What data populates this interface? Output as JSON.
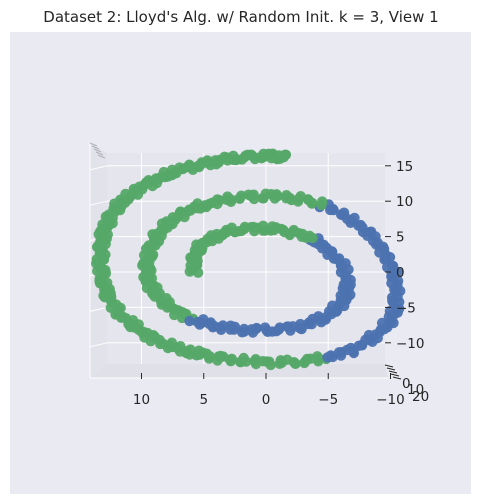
{
  "chart_data": {
    "type": "scatter",
    "projection": "3d",
    "title": "Dataset 2: Lloyd's Alg. w/ Random Init. k = 3, View 1",
    "xlabel": "",
    "ylabel": "",
    "zlabel": "",
    "x_axis": {
      "ticks": [
        10,
        5,
        0,
        -5,
        -10
      ],
      "tick_labels": [
        "10",
        "5",
        "0",
        "−5",
        "−10"
      ],
      "range": [
        14,
        -10
      ],
      "orientation": "reversed"
    },
    "z_axis": {
      "ticks": [
        15,
        10,
        5,
        0,
        -5,
        -10
      ],
      "tick_labels": [
        "15",
        "10",
        "5",
        "0",
        "−5",
        "−10"
      ],
      "range": [
        -13,
        17
      ]
    },
    "depth_axis": {
      "tick_labels": [
        "0",
        "10",
        "20"
      ]
    },
    "grid": true,
    "legend": "none",
    "colors": {
      "cluster_green": "#55a868",
      "cluster_blue": "#4c72b0",
      "panel": "#eaeaf2",
      "pane": "#e5e5ed",
      "grid": "#ffffff"
    },
    "curve": {
      "description": "spiral point cloud, points listed as (x, z) in data units",
      "points": [
        [
          -1.6,
          16.2
        ],
        [
          -0.4,
          16.4
        ],
        [
          1.4,
          16.3
        ],
        [
          3.2,
          15.9
        ],
        [
          5.0,
          15.3
        ],
        [
          6.8,
          14.5
        ],
        [
          8.4,
          13.4
        ],
        [
          10.0,
          12.0
        ],
        [
          11.4,
          10.2
        ],
        [
          12.4,
          8.2
        ],
        [
          13.0,
          6.0
        ],
        [
          13.2,
          3.8
        ],
        [
          13.3,
          1.2
        ],
        [
          13.1,
          -1.4
        ],
        [
          12.6,
          -3.8
        ],
        [
          11.6,
          -6.2
        ],
        [
          10.2,
          -8.2
        ],
        [
          8.6,
          -9.8
        ],
        [
          6.8,
          -11.0
        ],
        [
          4.8,
          -11.8
        ],
        [
          2.6,
          -12.4
        ],
        [
          0.0,
          -12.8
        ],
        [
          -2.6,
          -12.7
        ],
        [
          -5.0,
          -12.1
        ],
        [
          -7.2,
          -10.8
        ],
        [
          -9.0,
          -8.8
        ],
        [
          -10.2,
          -6.4
        ],
        [
          -10.5,
          -3.6
        ],
        [
          -10.3,
          -0.6
        ],
        [
          -9.6,
          2.6
        ],
        [
          -8.3,
          5.4
        ],
        [
          -6.6,
          7.8
        ],
        [
          -4.4,
          9.6
        ],
        [
          -2.2,
          10.5
        ],
        [
          0.2,
          10.8
        ],
        [
          2.6,
          10.4
        ],
        [
          4.8,
          9.6
        ],
        [
          6.6,
          8.4
        ],
        [
          7.8,
          7.0
        ],
        [
          8.8,
          5.0
        ],
        [
          9.4,
          2.8
        ],
        [
          9.6,
          0.6
        ],
        [
          9.4,
          -1.6
        ],
        [
          8.6,
          -3.6
        ],
        [
          7.4,
          -5.4
        ],
        [
          5.8,
          -6.8
        ],
        [
          3.8,
          -7.8
        ],
        [
          1.6,
          -8.2
        ],
        [
          -0.8,
          -8.2
        ],
        [
          -3.0,
          -7.6
        ],
        [
          -5.0,
          -6.2
        ],
        [
          -6.2,
          -4.2
        ],
        [
          -6.6,
          -1.8
        ],
        [
          -6.2,
          0.8
        ],
        [
          -5.0,
          3.2
        ],
        [
          -3.6,
          4.8
        ],
        [
          -1.8,
          5.8
        ],
        [
          0.2,
          6.2
        ],
        [
          2.2,
          6.0
        ],
        [
          4.0,
          5.2
        ],
        [
          5.2,
          3.8
        ],
        [
          5.8,
          2.0
        ],
        [
          5.8,
          -0.4
        ]
      ]
    },
    "series": [
      {
        "color": "green",
        "point_range": [
          0,
          23
        ]
      },
      {
        "color": "blue",
        "point_range": [
          23,
          32
        ]
      },
      {
        "color": "green",
        "point_range": [
          32,
          45
        ]
      },
      {
        "color": "blue",
        "point_range": [
          45,
          55
        ]
      },
      {
        "color": "green",
        "point_range": [
          55,
          63
        ]
      }
    ]
  }
}
